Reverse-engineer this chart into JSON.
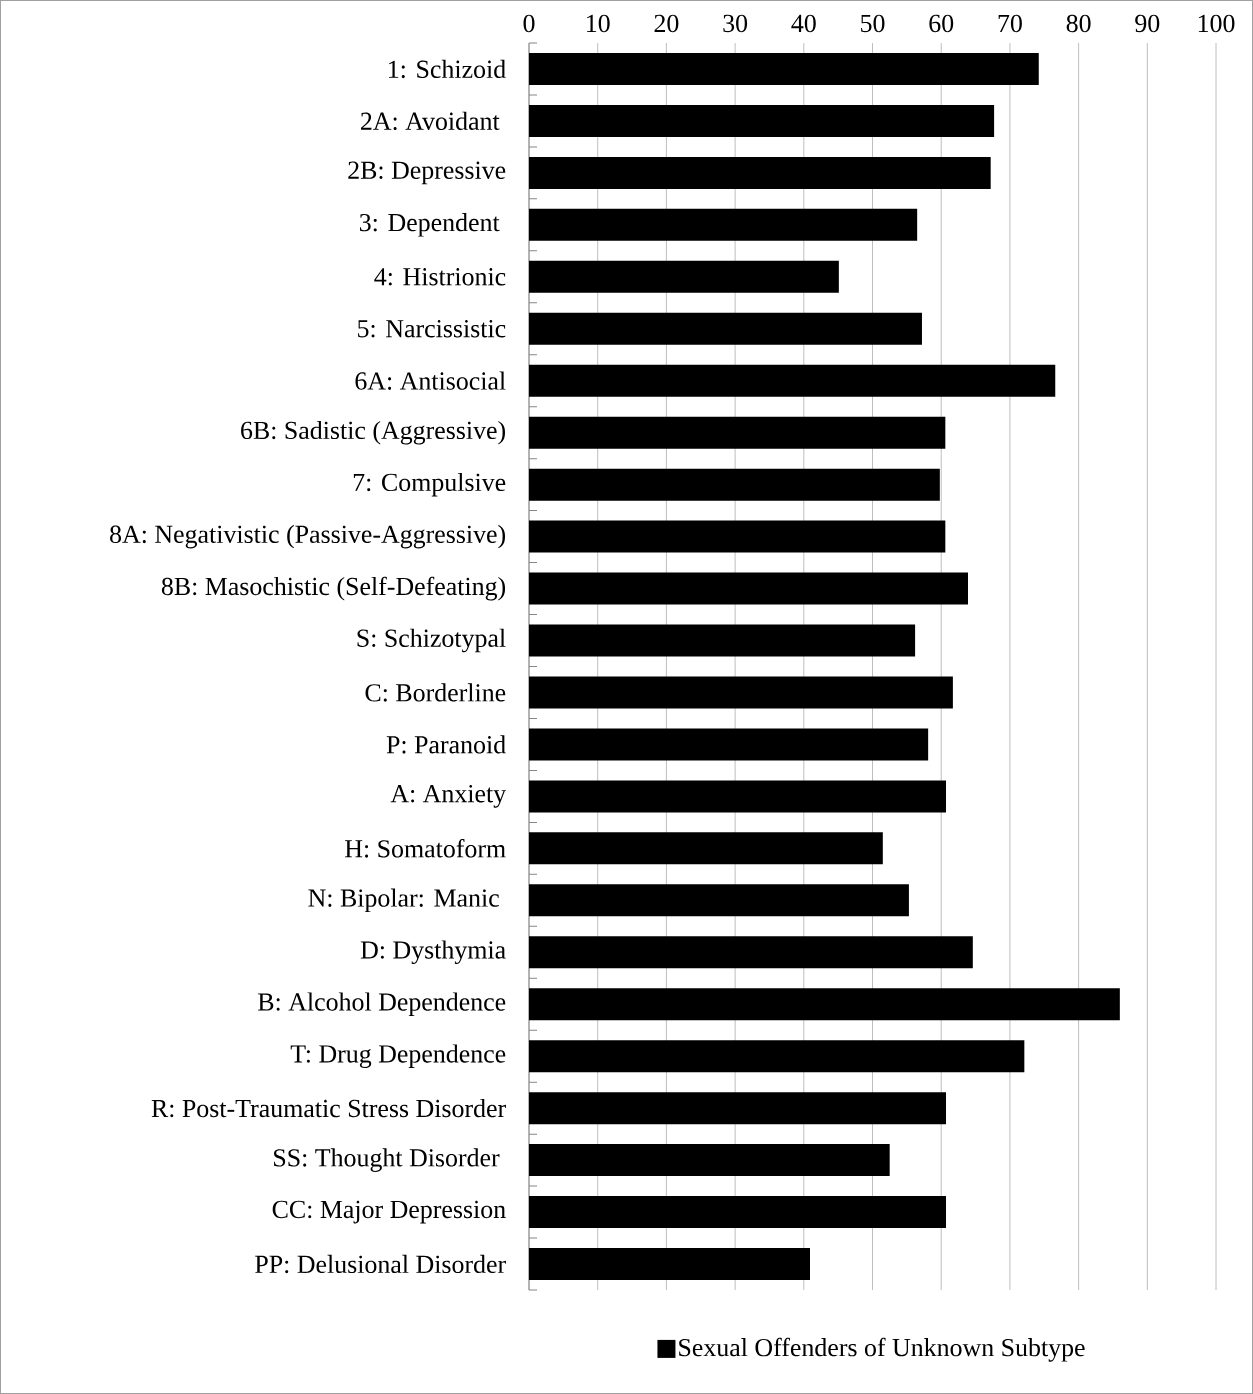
{
  "chart_data": {
    "type": "bar",
    "orientation": "horizontal",
    "categories": [
      "1: Schizoid",
      "2A: Avoidant ",
      "2B: Depressive",
      "3: Dependent ",
      "4: Histrionic",
      "5: Narcissistic",
      "6A: Antisocial",
      "6B: Sadistic (Aggressive)",
      "7: Compulsive",
      "8A: Negativistic (Passive-Aggressive)",
      "8B: Masochistic (Self-Defeating)",
      "S: Schizotypal",
      "C: Borderline",
      "P: Paranoid",
      "A: Anxiety",
      "H: Somatoform",
      "N: Bipolar: Manic ",
      "D: Dysthymia",
      "B: Alcohol Dependence",
      "T: Drug Dependence",
      "R: Post-Traumatic Stress Disorder",
      "SS: Thought Disorder ",
      "CC: Major Depression",
      "PP: Delusional Disorder"
    ],
    "series": [
      {
        "name": "Sexual Offenders of Unknown Subtype",
        "color": "#000000",
        "values": [
          74.2,
          67.7,
          67.2,
          56.5,
          45.1,
          57.2,
          76.6,
          60.6,
          59.8,
          60.6,
          63.9,
          56.2,
          61.7,
          58.1,
          60.7,
          51.5,
          55.3,
          64.6,
          86.0,
          72.1,
          60.7,
          52.5,
          60.7,
          40.9
        ]
      }
    ],
    "xlim": [
      0,
      100
    ],
    "xticks": [
      0,
      10,
      20,
      30,
      40,
      50,
      60,
      70,
      80,
      90,
      100
    ],
    "grid": "x",
    "legend": "bottom"
  }
}
